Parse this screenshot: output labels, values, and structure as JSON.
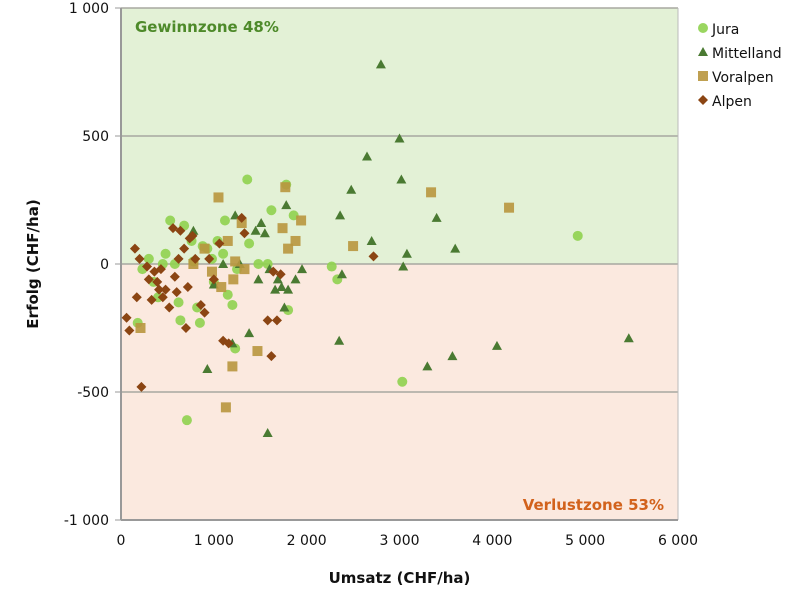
{
  "chart_data": {
    "type": "scatter",
    "title": "",
    "xlabel": "Umsatz (CHF/ha)",
    "ylabel": "Erfolg (CHF/ha)",
    "xlim": [
      0,
      6000
    ],
    "ylim": [
      -1000,
      1000
    ],
    "x_ticks": [
      0,
      1000,
      2000,
      3000,
      4000,
      5000,
      6000
    ],
    "x_tick_labels": [
      "0",
      "1 000",
      "2 000",
      "3 000",
      "4 000",
      "5 000",
      "6 000"
    ],
    "y_ticks": [
      1000,
      500,
      0,
      -500,
      -1000
    ],
    "y_tick_labels": [
      "1 000",
      "500",
      "0",
      "-500",
      "-1 000"
    ],
    "grid": true,
    "legend_position": "top-right",
    "zones": [
      {
        "name": "profit",
        "label": "Gewinnzone 48%",
        "range": [
          0,
          1000
        ],
        "fill": "#e3f1d6",
        "text_color": "#4e8a2a",
        "label_position": "top-left"
      },
      {
        "name": "loss",
        "label": "Verlustzone 53%",
        "range": [
          -1000,
          0
        ],
        "fill": "#fbe9df",
        "text_color": "#d2621c",
        "label_position": "bottom-right"
      }
    ],
    "series": [
      {
        "name": "Jura",
        "marker": "circle",
        "color": "#8fd14f",
        "points": [
          [
            230,
            -20
          ],
          [
            300,
            20
          ],
          [
            350,
            -70
          ],
          [
            400,
            -130
          ],
          [
            480,
            40
          ],
          [
            530,
            170
          ],
          [
            580,
            0
          ],
          [
            620,
            -150
          ],
          [
            640,
            -220
          ],
          [
            680,
            150
          ],
          [
            710,
            -610
          ],
          [
            760,
            90
          ],
          [
            780,
            10
          ],
          [
            820,
            -170
          ],
          [
            850,
            -230
          ],
          [
            880,
            70
          ],
          [
            930,
            60
          ],
          [
            980,
            20
          ],
          [
            1000,
            -70
          ],
          [
            1040,
            90
          ],
          [
            1100,
            40
          ],
          [
            1120,
            170
          ],
          [
            1150,
            -120
          ],
          [
            1200,
            -160
          ],
          [
            1230,
            -330
          ],
          [
            1250,
            -20
          ],
          [
            1360,
            330
          ],
          [
            1380,
            80
          ],
          [
            1480,
            0
          ],
          [
            1580,
            0
          ],
          [
            1620,
            210
          ],
          [
            1780,
            310
          ],
          [
            1800,
            -180
          ],
          [
            1860,
            190
          ],
          [
            2270,
            -10
          ],
          [
            2330,
            -60
          ],
          [
            3030,
            -460
          ],
          [
            4920,
            110
          ],
          [
            180,
            -230
          ],
          [
            450,
            0
          ]
        ]
      },
      {
        "name": "Mittelland",
        "marker": "triangle",
        "color": "#4a7a32",
        "points": [
          [
            780,
            130
          ],
          [
            930,
            -410
          ],
          [
            1000,
            -80
          ],
          [
            1100,
            0
          ],
          [
            1200,
            -310
          ],
          [
            1230,
            190
          ],
          [
            1280,
            0
          ],
          [
            1380,
            -270
          ],
          [
            1450,
            130
          ],
          [
            1480,
            -60
          ],
          [
            1510,
            160
          ],
          [
            1550,
            120
          ],
          [
            1580,
            -660
          ],
          [
            1600,
            -20
          ],
          [
            1660,
            -100
          ],
          [
            1690,
            -60
          ],
          [
            1730,
            -90
          ],
          [
            1760,
            -170
          ],
          [
            1780,
            230
          ],
          [
            1800,
            -100
          ],
          [
            1880,
            -60
          ],
          [
            1950,
            -20
          ],
          [
            2350,
            -300
          ],
          [
            2360,
            190
          ],
          [
            2380,
            -40
          ],
          [
            2480,
            290
          ],
          [
            2650,
            420
          ],
          [
            2700,
            90
          ],
          [
            2800,
            780
          ],
          [
            3000,
            490
          ],
          [
            3020,
            330
          ],
          [
            3040,
            -10
          ],
          [
            3080,
            40
          ],
          [
            3300,
            -400
          ],
          [
            3400,
            180
          ],
          [
            3570,
            -360
          ],
          [
            3600,
            60
          ],
          [
            4050,
            -320
          ],
          [
            5470,
            -290
          ]
        ]
      },
      {
        "name": "Voralpen",
        "marker": "square",
        "color": "#b8963e",
        "points": [
          [
            210,
            -250
          ],
          [
            780,
            0
          ],
          [
            900,
            60
          ],
          [
            980,
            -30
          ],
          [
            1050,
            260
          ],
          [
            1080,
            -90
          ],
          [
            1130,
            -560
          ],
          [
            1150,
            90
          ],
          [
            1200,
            -400
          ],
          [
            1210,
            -60
          ],
          [
            1230,
            10
          ],
          [
            1300,
            160
          ],
          [
            1330,
            -20
          ],
          [
            1470,
            -340
          ],
          [
            1740,
            140
          ],
          [
            1770,
            300
          ],
          [
            1800,
            60
          ],
          [
            1880,
            90
          ],
          [
            1940,
            170
          ],
          [
            2500,
            70
          ],
          [
            3340,
            280
          ],
          [
            4180,
            220
          ]
        ]
      },
      {
        "name": "Alpen",
        "marker": "diamond",
        "color": "#8b4513",
        "points": [
          [
            60,
            -210
          ],
          [
            90,
            -260
          ],
          [
            150,
            60
          ],
          [
            170,
            -130
          ],
          [
            200,
            20
          ],
          [
            220,
            -480
          ],
          [
            280,
            -10
          ],
          [
            300,
            -60
          ],
          [
            330,
            -140
          ],
          [
            360,
            -30
          ],
          [
            390,
            -70
          ],
          [
            410,
            -100
          ],
          [
            430,
            -20
          ],
          [
            450,
            -130
          ],
          [
            480,
            -100
          ],
          [
            520,
            -170
          ],
          [
            560,
            140
          ],
          [
            580,
            -50
          ],
          [
            600,
            -110
          ],
          [
            620,
            20
          ],
          [
            640,
            130
          ],
          [
            680,
            60
          ],
          [
            700,
            -250
          ],
          [
            720,
            -90
          ],
          [
            740,
            100
          ],
          [
            770,
            110
          ],
          [
            800,
            20
          ],
          [
            860,
            -160
          ],
          [
            900,
            -190
          ],
          [
            950,
            20
          ],
          [
            1000,
            -60
          ],
          [
            1060,
            80
          ],
          [
            1100,
            -300
          ],
          [
            1160,
            -310
          ],
          [
            1300,
            180
          ],
          [
            1330,
            120
          ],
          [
            1580,
            -220
          ],
          [
            1620,
            -360
          ],
          [
            1640,
            -30
          ],
          [
            1680,
            -220
          ],
          [
            1720,
            -40
          ],
          [
            2720,
            30
          ]
        ]
      }
    ]
  }
}
